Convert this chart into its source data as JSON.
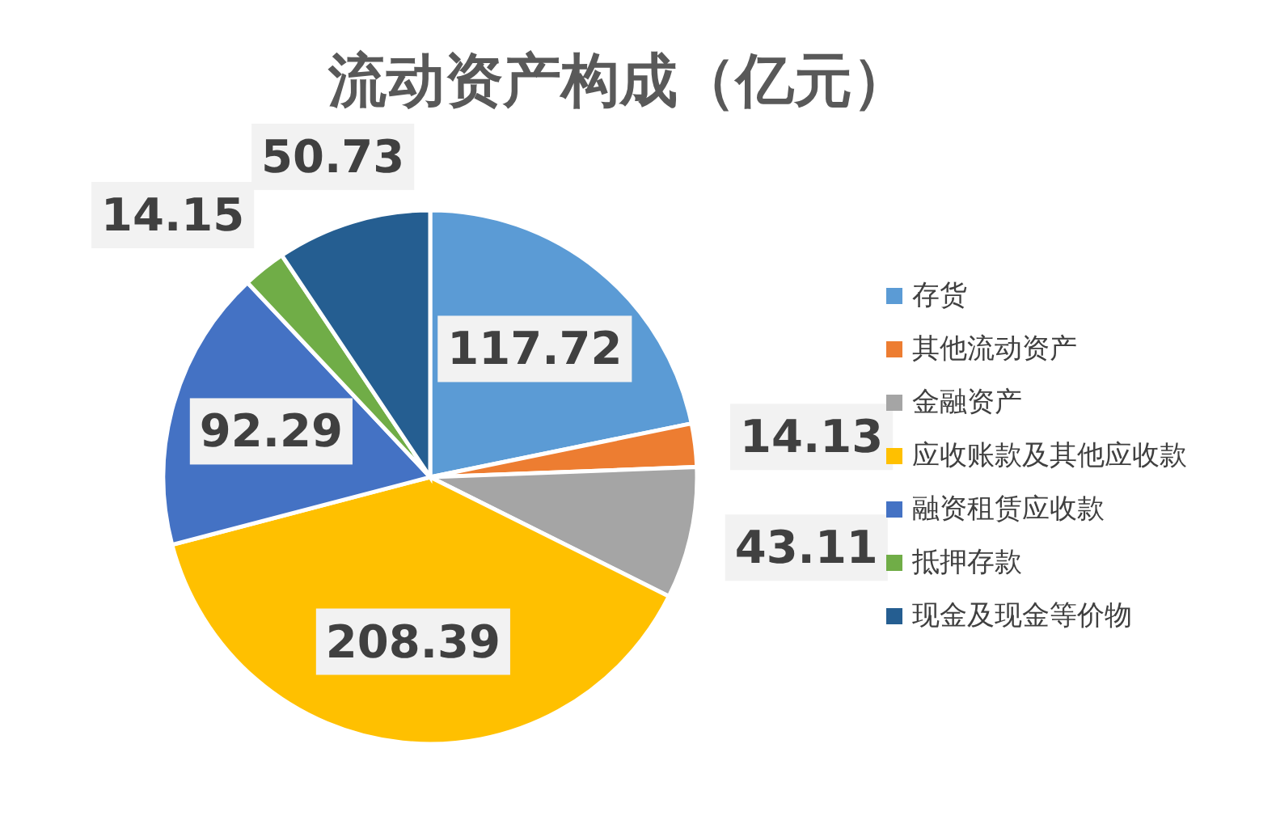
{
  "chart_data": {
    "type": "pie",
    "title": "流动资产构成（亿元）",
    "categories": [
      "存货",
      "其他流动资产",
      "金融资产",
      "应收账款及其他应收款",
      "融资租赁应收款",
      "抵押存款",
      "现金及现金等价物"
    ],
    "values": [
      117.72,
      14.13,
      43.11,
      208.39,
      92.29,
      14.15,
      50.73
    ],
    "colors": [
      "#5b9bd5",
      "#ed7d31",
      "#a5a5a5",
      "#ffc000",
      "#4472c4",
      "#70ad47",
      "#255e91"
    ],
    "data_labels": true,
    "legend": "right"
  }
}
